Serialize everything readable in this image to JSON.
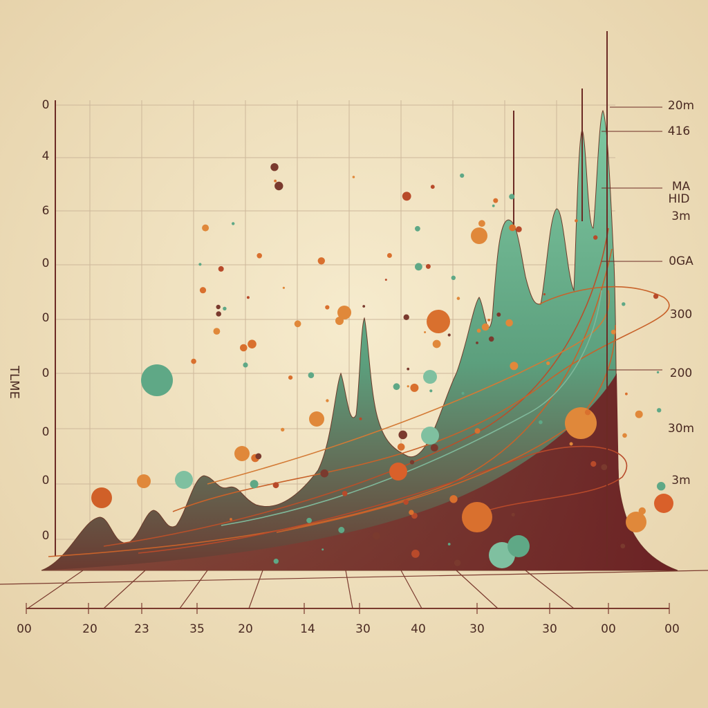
{
  "axis_title": "TLME",
  "left_labels": [
    "0",
    "4",
    "6",
    "0",
    "0",
    "0",
    "0",
    "0",
    "0"
  ],
  "right_labels": [
    "20m",
    "416",
    "MA",
    "HID",
    "3m",
    "0GA",
    "300",
    "200",
    "30m",
    "3m"
  ],
  "bottom_labels": [
    "00",
    "20",
    "23",
    "35",
    "20",
    "14",
    "30",
    "40",
    "30",
    "30",
    "00",
    "00"
  ]
}
